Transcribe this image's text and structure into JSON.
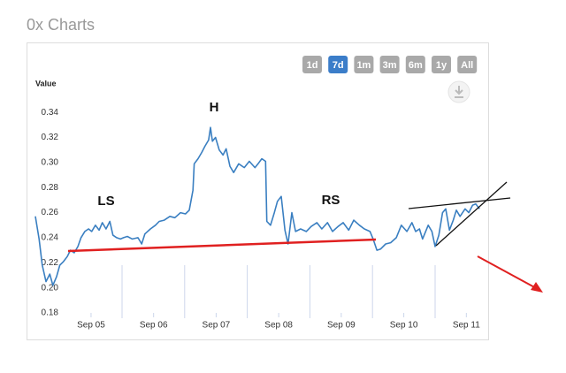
{
  "header": {
    "title": "0x Charts"
  },
  "range_buttons": {
    "labels": [
      "1d",
      "7d",
      "1m",
      "3m",
      "6m",
      "1y",
      "All"
    ],
    "active": "7d"
  },
  "annotations": [
    "LS",
    "H",
    "RS"
  ],
  "chart_data": {
    "type": "line",
    "y_label": "Value",
    "color": "#3a7fc1",
    "x": [
      4.11,
      4.17,
      4.22,
      4.28,
      4.34,
      4.39,
      4.45,
      4.5,
      4.56,
      4.62,
      4.67,
      4.73,
      4.79,
      4.84,
      4.9,
      4.96,
      5.01,
      5.07,
      5.13,
      5.18,
      5.24,
      5.3,
      5.35,
      5.41,
      5.47,
      5.52,
      5.58,
      5.66,
      5.75,
      5.81,
      5.86,
      5.95,
      6.03,
      6.09,
      6.17,
      6.26,
      6.34,
      6.43,
      6.51,
      6.57,
      6.63,
      6.65,
      6.71,
      6.77,
      6.82,
      6.88,
      6.91,
      6.94,
      6.99,
      7.05,
      7.11,
      7.16,
      7.22,
      7.28,
      7.36,
      7.45,
      7.53,
      7.62,
      7.67,
      7.73,
      7.79,
      7.81,
      7.87,
      7.93,
      7.98,
      8.04,
      8.1,
      8.15,
      8.21,
      8.27,
      8.35,
      8.44,
      8.52,
      8.61,
      8.69,
      8.78,
      8.86,
      8.95,
      9.03,
      9.12,
      9.2,
      9.29,
      9.37,
      9.46,
      9.51,
      9.57,
      9.63,
      9.71,
      9.79,
      9.88,
      9.96,
      10.05,
      10.13,
      10.19,
      10.25,
      10.3,
      10.39,
      10.45,
      10.5,
      10.56,
      10.62,
      10.67,
      10.73,
      10.79,
      10.84,
      10.9,
      10.98,
      11.04,
      11.1,
      11.15,
      11.21
    ],
    "values": [
      0.257,
      0.239,
      0.218,
      0.205,
      0.211,
      0.202,
      0.209,
      0.218,
      0.221,
      0.225,
      0.23,
      0.228,
      0.233,
      0.24,
      0.245,
      0.247,
      0.245,
      0.25,
      0.246,
      0.252,
      0.247,
      0.253,
      0.242,
      0.24,
      0.239,
      0.24,
      0.241,
      0.239,
      0.24,
      0.235,
      0.243,
      0.247,
      0.25,
      0.253,
      0.254,
      0.257,
      0.256,
      0.26,
      0.259,
      0.262,
      0.278,
      0.299,
      0.303,
      0.308,
      0.313,
      0.318,
      0.328,
      0.317,
      0.32,
      0.31,
      0.306,
      0.311,
      0.297,
      0.292,
      0.299,
      0.296,
      0.301,
      0.296,
      0.299,
      0.303,
      0.301,
      0.253,
      0.25,
      0.26,
      0.269,
      0.273,
      0.246,
      0.235,
      0.26,
      0.245,
      0.247,
      0.245,
      0.249,
      0.252,
      0.247,
      0.252,
      0.245,
      0.249,
      0.252,
      0.246,
      0.254,
      0.25,
      0.247,
      0.245,
      0.239,
      0.23,
      0.231,
      0.235,
      0.236,
      0.24,
      0.25,
      0.245,
      0.252,
      0.245,
      0.247,
      0.239,
      0.25,
      0.245,
      0.233,
      0.242,
      0.26,
      0.263,
      0.246,
      0.254,
      0.262,
      0.257,
      0.263,
      0.26,
      0.266,
      0.267,
      0.263
    ],
    "xlim": [
      4.11,
      11.25
    ],
    "xticks": [
      {
        "value": 5,
        "label": "Sep 05"
      },
      {
        "value": 6,
        "label": "Sep 06"
      },
      {
        "value": 7,
        "label": "Sep 07"
      },
      {
        "value": 8,
        "label": "Sep 08"
      },
      {
        "value": 9,
        "label": "Sep 09"
      },
      {
        "value": 10,
        "label": "Sep 10"
      },
      {
        "value": 11,
        "label": "Sep 11"
      }
    ],
    "ylim": [
      0.18,
      0.35
    ],
    "yticks": [
      0.18,
      {
        "value": 0.2,
        "label": "0.20"
      },
      0.22,
      0.24,
      0.26,
      0.28,
      {
        "value": 0.3,
        "label": "0.30"
      },
      0.32,
      0.34
    ]
  }
}
